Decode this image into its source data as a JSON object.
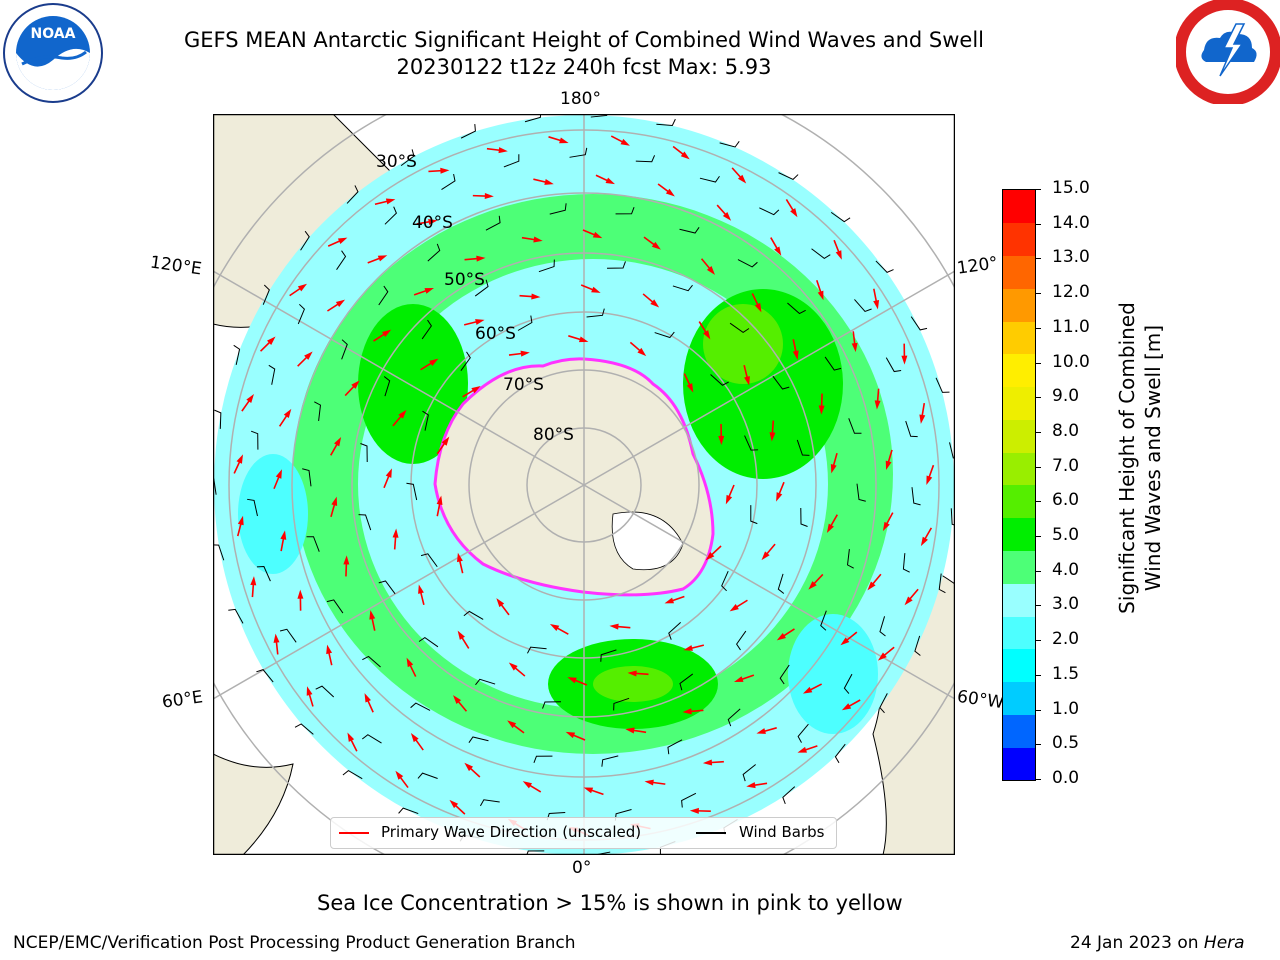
{
  "title": {
    "line1": "GEFS MEAN Antarctic Significant Height of Combined Wind Waves and Swell",
    "line2": "20230122 t12z 240h fcst   Max: 5.93"
  },
  "logos": {
    "left": "noaa-logo",
    "left_text": "NOAA",
    "right": "national-weather-service-logo"
  },
  "map": {
    "projection": "south-polar-stereographic",
    "lat_labels": [
      "30°S",
      "40°S",
      "50°S",
      "60°S",
      "70°S",
      "80°S"
    ],
    "lon_labels": {
      "top": "180°",
      "bottom": "0°",
      "upper_left": "120°E",
      "lower_left": "60°E",
      "upper_right": "120°",
      "lower_right": "60°W"
    },
    "colors": {
      "land": "#efecda",
      "sea_ice_core": "#ffffff",
      "sea_ice_edge": "#ff33ff",
      "wave_arrow": "#ff0000",
      "wind_barb": "#000000"
    }
  },
  "legend": {
    "wave_label": "Primary Wave Direction (unscaled)",
    "barb_label": "Wind Barbs"
  },
  "colorbar": {
    "label_line1": "Significant Height of Combined",
    "label_line2": "Wind Waves and Swell [m]",
    "ticks": [
      "0.0",
      "0.5",
      "1.0",
      "1.5",
      "2.0",
      "3.0",
      "4.0",
      "5.0",
      "6.0",
      "7.0",
      "8.0",
      "9.0",
      "10.0",
      "11.0",
      "12.0",
      "13.0",
      "14.0",
      "15.0"
    ],
    "colors": [
      "#0000ff",
      "#0066ff",
      "#00ccff",
      "#00ffff",
      "#4dffff",
      "#99ffff",
      "#4dff77",
      "#00ee00",
      "#55ee00",
      "#99ee00",
      "#ccee00",
      "#eeee00",
      "#ffee00",
      "#ffcc00",
      "#ff9900",
      "#ff6600",
      "#ff3300",
      "#ff0000"
    ]
  },
  "caption": "Sea Ice Concentration > 15% is shown in pink to yellow",
  "footer": {
    "left": "NCEP/EMC/Verification Post Processing Product Generation Branch",
    "right_date": "24 Jan 2023 on ",
    "right_host": "Hera"
  }
}
